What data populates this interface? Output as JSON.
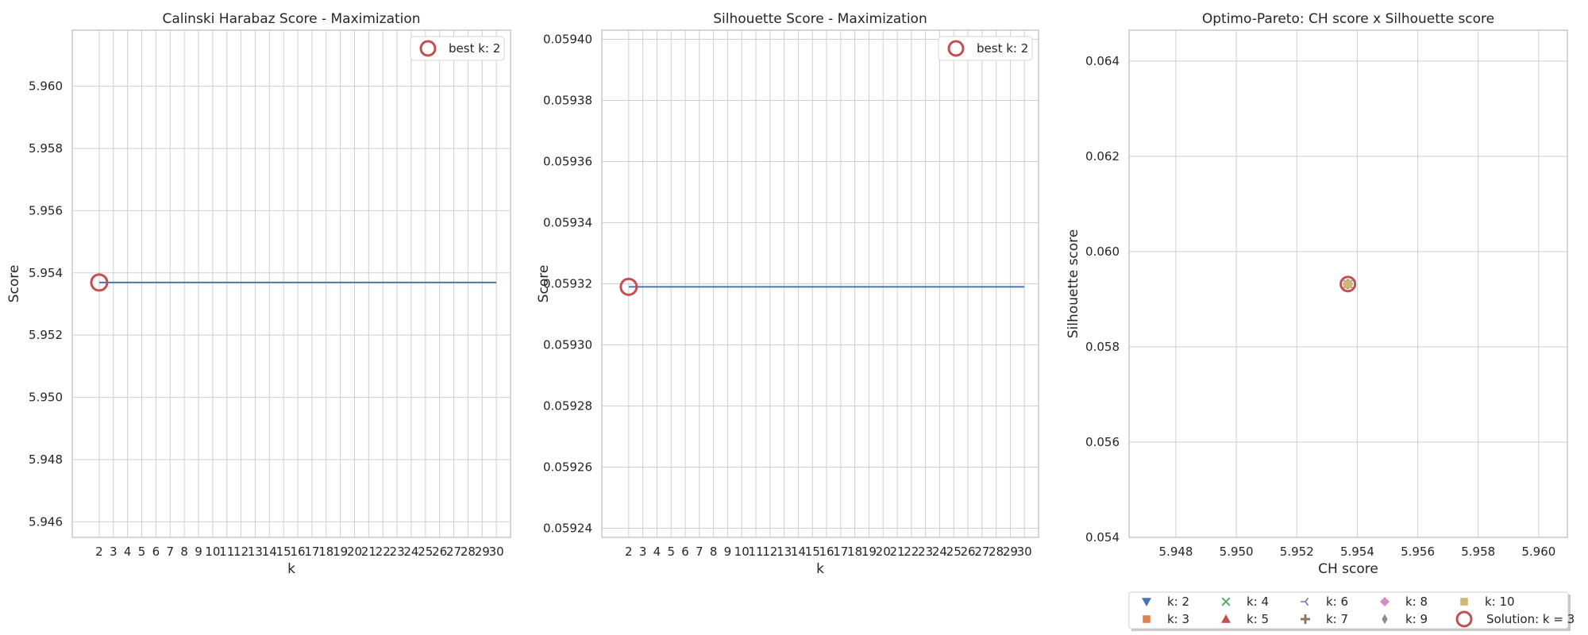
{
  "chart_data": [
    {
      "type": "line",
      "title": "Calinski Harabaz Score - Maximization",
      "xlabel": "k",
      "ylabel": "Score",
      "x": [
        2,
        3,
        4,
        5,
        6,
        7,
        8,
        9,
        10,
        11,
        12,
        13,
        14,
        15,
        16,
        17,
        18,
        19,
        20,
        21,
        22,
        23,
        24,
        25,
        26,
        27,
        28,
        29,
        30
      ],
      "y": [
        5.95369,
        5.95369,
        5.95369,
        5.95369,
        5.95369,
        5.95369,
        5.95369,
        5.95369,
        5.95369,
        5.95369,
        5.95369,
        5.95369,
        5.95369,
        5.95369,
        5.95369,
        5.95369,
        5.95369,
        5.95369,
        5.95369,
        5.95369,
        5.95369,
        5.95369,
        5.95369,
        5.95369,
        5.95369,
        5.95369,
        5.95369,
        5.95369,
        5.95369
      ],
      "xlim": [
        0.1,
        31.0
      ],
      "ylim": [
        5.9455,
        5.9618
      ],
      "yticks": [
        5.946,
        5.948,
        5.95,
        5.952,
        5.954,
        5.956,
        5.958,
        5.96
      ],
      "ytick_labels": [
        "5.946",
        "5.948",
        "5.950",
        "5.952",
        "5.954",
        "5.956",
        "5.958",
        "5.960"
      ],
      "grid": true,
      "line_color": "#4c72b0",
      "highlight": {
        "x": 2,
        "y": 5.95369,
        "label": "best k: 2",
        "color": "#c44e52"
      },
      "legend": "top-right"
    },
    {
      "type": "line",
      "title": "Silhouette Score - Maximization",
      "xlabel": "k",
      "ylabel": "Score",
      "x": [
        2,
        3,
        4,
        5,
        6,
        7,
        8,
        9,
        10,
        11,
        12,
        13,
        14,
        15,
        16,
        17,
        18,
        19,
        20,
        21,
        22,
        23,
        24,
        25,
        26,
        27,
        28,
        29,
        30
      ],
      "y": [
        0.059319,
        0.059319,
        0.059319,
        0.059319,
        0.059319,
        0.059319,
        0.059319,
        0.059319,
        0.059319,
        0.059319,
        0.059319,
        0.059319,
        0.059319,
        0.059319,
        0.059319,
        0.059319,
        0.059319,
        0.059319,
        0.059319,
        0.059319,
        0.059319,
        0.059319,
        0.059319,
        0.059319,
        0.059319,
        0.059319,
        0.059319,
        0.059319,
        0.059319
      ],
      "xlim": [
        0.1,
        31.0
      ],
      "ylim": [
        0.059237,
        0.059403
      ],
      "yticks": [
        0.05924,
        0.05926,
        0.05928,
        0.0593,
        0.05932,
        0.05934,
        0.05936,
        0.05938,
        0.0594
      ],
      "ytick_labels": [
        "0.05924",
        "0.05926",
        "0.05928",
        "0.05930",
        "0.05932",
        "0.05934",
        "0.05936",
        "0.05938",
        "0.05940"
      ],
      "grid": true,
      "line_color": "#4c72b0",
      "highlight": {
        "x": 2,
        "y": 0.059319,
        "label": "best k: 2",
        "color": "#c44e52"
      },
      "legend": "top-right"
    },
    {
      "type": "scatter",
      "title": "Optimo-Pareto: CH score x Silhouette score",
      "xlabel": "CH score",
      "ylabel": "Silhouette score",
      "xlim": [
        5.94645,
        5.96095
      ],
      "ylim": [
        0.054,
        0.06465
      ],
      "xticks": [
        5.948,
        5.95,
        5.952,
        5.954,
        5.956,
        5.958,
        5.96
      ],
      "xtick_labels": [
        "5.948",
        "5.950",
        "5.952",
        "5.954",
        "5.956",
        "5.958",
        "5.960"
      ],
      "yticks": [
        0.054,
        0.056,
        0.058,
        0.06,
        0.062,
        0.064
      ],
      "ytick_labels": [
        "0.054",
        "0.056",
        "0.058",
        "0.060",
        "0.062",
        "0.064"
      ],
      "grid": true,
      "series": [
        {
          "name": "k: 2",
          "x": 5.95369,
          "y": 0.059319,
          "marker": "triangle-down",
          "color": "#4c72b0"
        },
        {
          "name": "k: 3",
          "x": 5.95369,
          "y": 0.059319,
          "marker": "square",
          "color": "#dd8452"
        },
        {
          "name": "k: 4",
          "x": 5.95369,
          "y": 0.059319,
          "marker": "x",
          "color": "#55a868"
        },
        {
          "name": "k: 5",
          "x": 5.95369,
          "y": 0.059319,
          "marker": "triangle-up",
          "color": "#c44e52"
        },
        {
          "name": "k: 6",
          "x": 5.95369,
          "y": 0.059319,
          "marker": "tri-left",
          "color": "#8172b3"
        },
        {
          "name": "k: 7",
          "x": 5.95369,
          "y": 0.059319,
          "marker": "plus",
          "color": "#937860"
        },
        {
          "name": "k: 8",
          "x": 5.95369,
          "y": 0.059319,
          "marker": "diamond",
          "color": "#da8bc3"
        },
        {
          "name": "k: 9",
          "x": 5.95369,
          "y": 0.059319,
          "marker": "thin-diamond",
          "color": "#8c8c8c"
        },
        {
          "name": "k: 10",
          "x": 5.95369,
          "y": 0.059319,
          "marker": "square",
          "color": "#ccb974"
        }
      ],
      "highlight": {
        "x": 5.95369,
        "y": 0.059319,
        "label": "Solution: k = 3",
        "color": "#c44e52"
      },
      "legend": "below"
    }
  ]
}
